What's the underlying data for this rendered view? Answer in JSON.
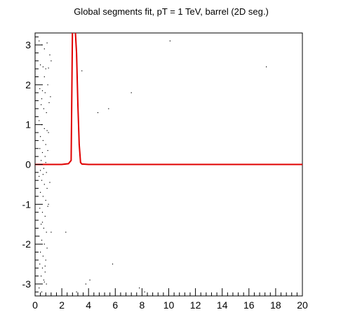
{
  "chart_data": {
    "type": "scatter",
    "title": "Global segments fit, pT = 1 TeV, barrel (2D seg.)",
    "xlim": [
      0,
      20
    ],
    "ylim": [
      -3.3,
      3.3
    ],
    "x_ticks": [
      "0",
      "2",
      "4",
      "6",
      "8",
      "10",
      "12",
      "14",
      "16",
      "18",
      "20"
    ],
    "y_ticks": [
      "-3",
      "-2",
      "-1",
      "0",
      "1",
      "2",
      "3"
    ],
    "grid": false,
    "colors": {
      "curve": "#e00000",
      "points": "#000000",
      "frame": "#000000"
    },
    "curve": {
      "x": [
        0,
        1,
        2,
        2.5,
        2.7,
        2.8,
        2.9,
        3.0,
        3.1,
        3.2,
        3.3,
        3.4,
        3.5,
        4,
        6,
        10,
        20
      ],
      "y": [
        0,
        0,
        0,
        0.02,
        0.1,
        3.4,
        3.4,
        3.4,
        2.8,
        1.5,
        0.5,
        0.05,
        0.01,
        0,
        0,
        0,
        0
      ]
    },
    "points": {
      "x": [
        0.3,
        0.5,
        0.7,
        0.9,
        1.1,
        0.4,
        0.6,
        0.8,
        1.0,
        1.2,
        0.35,
        0.55,
        0.75,
        0.95,
        1.15,
        0.45,
        0.65,
        0.85,
        1.05,
        0.3,
        0.5,
        0.7,
        0.9,
        0.4,
        0.6,
        0.8,
        1.0,
        0.35,
        0.55,
        0.75,
        0.95,
        0.45,
        0.65,
        0.85,
        0.3,
        0.5,
        0.7,
        0.9,
        1.1,
        0.4,
        0.6,
        0.8,
        1.0,
        0.35,
        0.55,
        0.75,
        0.95,
        0.45,
        0.65,
        0.85,
        0.3,
        0.5,
        0.7,
        0.9,
        0.4,
        0.6,
        0.8,
        0.35,
        0.55,
        0.75,
        0.45,
        0.65,
        0.85,
        0.3,
        0.5,
        0.7,
        0.4,
        0.6,
        0.8,
        0.5,
        0.7,
        0.55,
        0.75,
        3.5,
        4.7,
        5.5,
        7.2,
        10.1,
        17.3,
        1.2,
        2.3,
        3.1,
        3.8,
        4.1,
        5.8,
        7.8,
        8.2
      ],
      "y": [
        3.1,
        3.0,
        2.9,
        3.05,
        2.75,
        2.5,
        2.45,
        2.4,
        2.42,
        2.6,
        1.9,
        1.85,
        1.8,
        2.0,
        1.7,
        1.5,
        1.4,
        1.3,
        1.55,
        1.1,
        1.0,
        0.9,
        0.85,
        0.7,
        0.6,
        0.5,
        0.8,
        0.4,
        0.3,
        0.2,
        0.35,
        0.1,
        -0.1,
        -0.2,
        -0.3,
        -0.4,
        -0.5,
        -0.6,
        -0.45,
        -0.7,
        -0.8,
        -0.9,
        -1.0,
        -1.1,
        -1.2,
        -1.3,
        -1.05,
        -1.5,
        -1.6,
        -1.7,
        -1.8,
        -1.9,
        -2.0,
        -2.1,
        -2.2,
        -2.3,
        -2.4,
        -2.5,
        -2.6,
        -2.7,
        -2.8,
        -2.9,
        -3.0,
        -3.1,
        -3.2,
        -2.95,
        -0.15,
        -0.25,
        0.05,
        1.65,
        2.2,
        -1.45,
        -2.55,
        2.35,
        1.3,
        1.4,
        1.8,
        3.1,
        2.45,
        -1.7,
        -1.7,
        -3.2,
        -3.0,
        -2.9,
        -2.5,
        -3.1,
        -3.2
      ]
    }
  }
}
